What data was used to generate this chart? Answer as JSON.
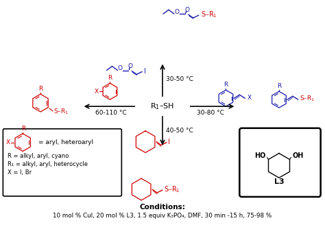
{
  "bg_color": "#ffffff",
  "conditions_bold": "Conditions:",
  "conditions_text": "10 mol % CuI, 20 mol % L3, 1.5 equiv K₃PO₄, DMF, 30 min -15 h, 75-98 %",
  "legend_lines": [
    "R = alkyl, aryl, cyano",
    "R₁ = alkyl, aryl, heterocycle",
    "X = I, Br"
  ],
  "legend_eq": "= aryl, heteroaryl",
  "temp_top": "30-50 °C",
  "temp_right": "30-80 °C",
  "temp_left": "60-110 °C",
  "temp_bottom": "40-50 °C",
  "L3_label": "L3",
  "red": "#cc0000",
  "blue": "#1a1aaa",
  "black": "#000000"
}
